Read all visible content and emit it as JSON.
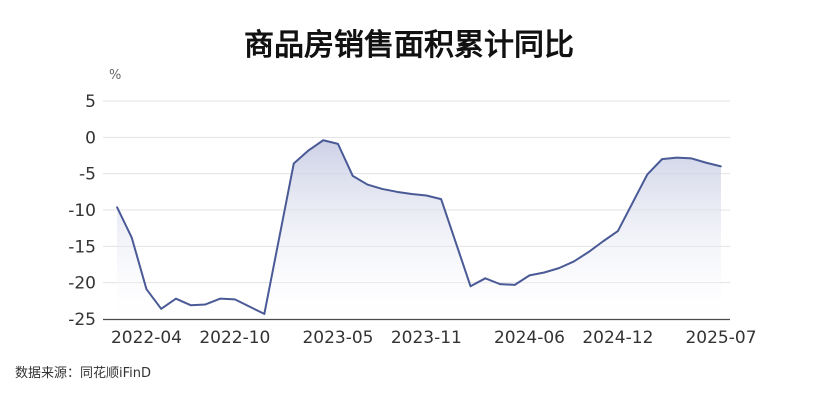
{
  "chart_data": {
    "type": "area",
    "title": "商品房销售面积累计同比",
    "ylabel": "%",
    "xlabel": "",
    "ylim": [
      -25,
      5
    ],
    "yticks": [
      5,
      0,
      -5,
      -10,
      -15,
      -20,
      -25
    ],
    "xtick_labels": [
      "2022-04",
      "2022-10",
      "2023-05",
      "2023-11",
      "2024-06",
      "2024-12",
      "2025-07"
    ],
    "grid": true,
    "legend": "none",
    "colors": {
      "line": "#4a5a96",
      "fill_top": "#c7cce3",
      "fill_bottom": "#ffffff",
      "grid": "#e3e3e3"
    },
    "series": [
      {
        "x": [
          "2022-02",
          "2022-03",
          "2022-04",
          "2022-05",
          "2022-06",
          "2022-07",
          "2022-08",
          "2022-09",
          "2022-10",
          "2022-11",
          "2022-12",
          "2023-02",
          "2023-03",
          "2023-04",
          "2023-05",
          "2023-06",
          "2023-07",
          "2023-08",
          "2023-09",
          "2023-10",
          "2023-11",
          "2023-12",
          "2024-02",
          "2024-03",
          "2024-04",
          "2024-05",
          "2024-06",
          "2024-07",
          "2024-08",
          "2024-09",
          "2024-10",
          "2024-11",
          "2024-12",
          "2025-02",
          "2025-03",
          "2025-04",
          "2025-05",
          "2025-06",
          "2025-07"
        ],
        "values": [
          -9.6,
          -13.8,
          -20.9,
          -23.6,
          -22.2,
          -23.1,
          -23.0,
          -22.2,
          -22.3,
          -23.3,
          -24.3,
          -3.6,
          -1.8,
          -0.4,
          -0.9,
          -5.3,
          -6.5,
          -7.1,
          -7.5,
          -7.8,
          -8.0,
          -8.5,
          -20.5,
          -19.4,
          -20.2,
          -20.3,
          -19.0,
          -18.6,
          -18.0,
          -17.1,
          -15.8,
          -14.3,
          -12.9,
          -5.1,
          -3.0,
          -2.8,
          -2.9,
          -3.5,
          -4.0
        ]
      }
    ]
  },
  "source": "数据来源：同花顺iFinD"
}
